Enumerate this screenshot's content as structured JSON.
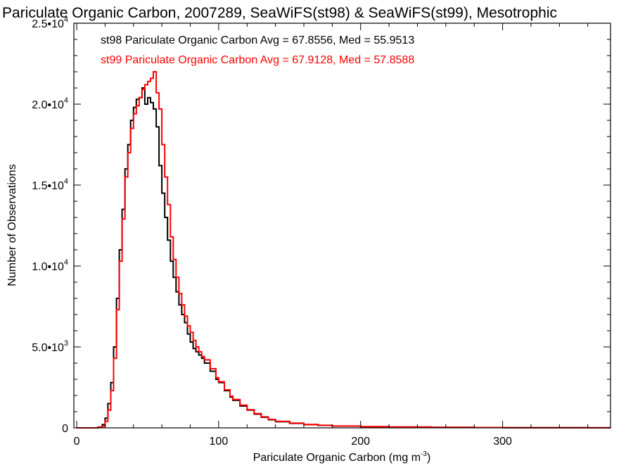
{
  "chart_data": {
    "type": "line",
    "title": "Pariculate Organic Carbon, 2007289, SeaWiFS(st98) & SeaWiFS(st99), Mesotrophic",
    "xlabel_main": "Pariculate Organic Carbon (mg m",
    "xlabel_exp": "-3",
    "xlabel_close": ")",
    "ylabel": "Number of Observations",
    "xlim": [
      -2,
      376
    ],
    "ylim": [
      0,
      25000
    ],
    "x_ticks": [
      {
        "value": 0,
        "label": "0"
      },
      {
        "value": 100,
        "label": "100"
      },
      {
        "value": 200,
        "label": "200"
      },
      {
        "value": 300,
        "label": "300"
      }
    ],
    "y_ticks": [
      {
        "value": 0,
        "mantissa": "0",
        "exp": ""
      },
      {
        "value": 5000,
        "mantissa": "5.0•10",
        "exp": "3"
      },
      {
        "value": 10000,
        "mantissa": "1.0•10",
        "exp": "4"
      },
      {
        "value": 15000,
        "mantissa": "1.5•10",
        "exp": "4"
      },
      {
        "value": 20000,
        "mantissa": "2.0•10",
        "exp": "4"
      },
      {
        "value": 25000,
        "mantissa": "2.5•10",
        "exp": "4"
      }
    ],
    "annotations": [
      {
        "text": "st98 Pariculate Organic Carbon Avg = 67.8556, Med = 55.9513",
        "color": "#000000"
      },
      {
        "text": "st99 Pariculate Organic Carbon Avg = 67.9128, Med = 57.8588",
        "color": "#ff0000"
      }
    ],
    "series": [
      {
        "name": "st98",
        "color": "#000000",
        "x": [
          0,
          10,
          15,
          18,
          20,
          22,
          24,
          26,
          28,
          30,
          32,
          34,
          36,
          38,
          40,
          42,
          44,
          46,
          48,
          50,
          52,
          54,
          56,
          58,
          60,
          62,
          64,
          66,
          68,
          70,
          72,
          74,
          76,
          78,
          80,
          82,
          84,
          86,
          88,
          90,
          94,
          98,
          100,
          104,
          108,
          110,
          115,
          120,
          125,
          130,
          135,
          140,
          150,
          160,
          170,
          180,
          200,
          220,
          250,
          280,
          300,
          330,
          360,
          376
        ],
        "y": [
          0,
          0,
          50,
          200,
          600,
          1500,
          2800,
          5000,
          8000,
          11000,
          13500,
          16000,
          17500,
          19000,
          19800,
          20300,
          20400,
          21000,
          20000,
          20400,
          20100,
          19700,
          18600,
          16200,
          14500,
          13000,
          11600,
          10300,
          9300,
          8400,
          7600,
          7000,
          6500,
          5800,
          5300,
          4900,
          4700,
          4500,
          4300,
          4000,
          3500,
          3000,
          2800,
          2300,
          1900,
          1700,
          1350,
          1100,
          850,
          650,
          500,
          380,
          280,
          200,
          150,
          110,
          70,
          50,
          30,
          20,
          15,
          10,
          5,
          0
        ]
      },
      {
        "name": "st99",
        "color": "#ff0000",
        "x": [
          0,
          10,
          15,
          18,
          20,
          22,
          24,
          26,
          28,
          30,
          32,
          34,
          36,
          38,
          40,
          42,
          44,
          46,
          48,
          50,
          52,
          54,
          56,
          58,
          60,
          62,
          64,
          66,
          68,
          70,
          72,
          74,
          76,
          78,
          80,
          82,
          84,
          86,
          88,
          90,
          94,
          98,
          100,
          104,
          108,
          110,
          115,
          120,
          125,
          130,
          135,
          140,
          150,
          160,
          170,
          180,
          200,
          220,
          250,
          280,
          300,
          330,
          360,
          376
        ],
        "y": [
          0,
          0,
          30,
          100,
          400,
          1100,
          2300,
          4300,
          7300,
          10300,
          12900,
          15500,
          17000,
          18500,
          19400,
          19900,
          20400,
          20900,
          21200,
          21400,
          21600,
          22000,
          20700,
          19700,
          17500,
          15500,
          13800,
          11800,
          10400,
          9300,
          8300,
          7600,
          6900,
          6300,
          5900,
          5400,
          5000,
          4700,
          4400,
          4200,
          3650,
          3100,
          2850,
          2350,
          1950,
          1750,
          1400,
          1120,
          880,
          680,
          520,
          400,
          290,
          210,
          155,
          115,
          72,
          52,
          32,
          21,
          15,
          10,
          5,
          0
        ]
      }
    ]
  }
}
